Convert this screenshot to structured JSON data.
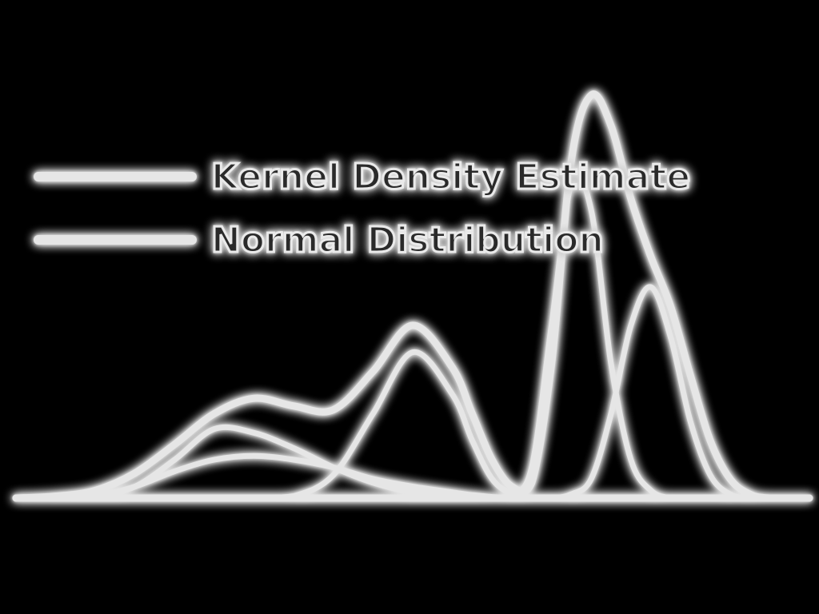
{
  "chart_data": {
    "type": "line",
    "title": "",
    "xlabel": "",
    "ylabel": "",
    "grid": false,
    "axes_visible": false,
    "legend_position": "upper-left",
    "xlim": [
      0,
      10
    ],
    "ylim": [
      0,
      1.0
    ],
    "background_color": "#000000",
    "line_color": "#e6e6e6",
    "legend": [
      {
        "label": "Kernel Density Estimate",
        "series": "kde"
      },
      {
        "label": "Normal Distribution",
        "series": "normal"
      }
    ],
    "x": [
      0.0,
      0.5,
      1.0,
      1.5,
      2.0,
      2.5,
      3.0,
      3.5,
      4.0,
      4.5,
      5.0,
      5.5,
      5.75,
      6.0,
      6.25,
      6.5,
      6.75,
      7.0,
      7.25,
      7.5,
      7.75,
      8.0,
      8.25,
      8.5,
      8.75,
      9.0,
      9.25,
      9.5,
      10.0
    ],
    "series": [
      {
        "id": "kde",
        "values": [
          0.0,
          0.005,
          0.02,
          0.065,
          0.14,
          0.22,
          0.26,
          0.24,
          0.23,
          0.33,
          0.45,
          0.34,
          0.22,
          0.1,
          0.03,
          0.04,
          0.35,
          0.88,
          1.05,
          0.97,
          0.78,
          0.63,
          0.5,
          0.32,
          0.15,
          0.05,
          0.01,
          0.0,
          0.0
        ]
      },
      {
        "id": "normal",
        "components": [
          {
            "values": [
              0.0,
              0.0,
              0.005,
              0.03,
              0.1,
              0.18,
              0.17,
              0.13,
              0.08,
              0.04,
              0.015,
              0.005,
              0.0,
              0.0,
              0.0,
              0.0,
              0.0,
              0.0,
              0.0,
              0.0,
              0.0,
              0.0,
              0.0,
              0.0,
              0.0,
              0.0,
              0.0,
              0.0,
              0.0
            ]
          },
          {
            "values": [
              0.0,
              0.0,
              0.005,
              0.03,
              0.07,
              0.1,
              0.11,
              0.1,
              0.08,
              0.05,
              0.03,
              0.015,
              0.008,
              0.003,
              0.001,
              0.0,
              0.0,
              0.0,
              0.0,
              0.0,
              0.0,
              0.0,
              0.0,
              0.0,
              0.0,
              0.0,
              0.0,
              0.0,
              0.0
            ]
          },
          {
            "values": [
              0.0,
              0.0,
              0.0,
              0.0,
              0.0,
              0.0,
              0.0,
              0.005,
              0.06,
              0.22,
              0.38,
              0.27,
              0.15,
              0.05,
              0.01,
              0.0,
              0.0,
              0.0,
              0.0,
              0.0,
              0.0,
              0.0,
              0.0,
              0.0,
              0.0,
              0.0,
              0.0,
              0.0,
              0.0
            ]
          },
          {
            "values": [
              0.0,
              0.0,
              0.0,
              0.0,
              0.0,
              0.0,
              0.0,
              0.0,
              0.0,
              0.0,
              0.0,
              0.0,
              0.0,
              0.0,
              0.01,
              0.08,
              0.45,
              0.82,
              0.75,
              0.35,
              0.1,
              0.02,
              0.0,
              0.0,
              0.0,
              0.0,
              0.0,
              0.0,
              0.0
            ]
          },
          {
            "values": [
              0.0,
              0.0,
              0.0,
              0.0,
              0.0,
              0.0,
              0.0,
              0.0,
              0.0,
              0.0,
              0.0,
              0.0,
              0.0,
              0.0,
              0.0,
              0.0,
              0.0,
              0.01,
              0.05,
              0.22,
              0.45,
              0.55,
              0.42,
              0.2,
              0.06,
              0.01,
              0.0,
              0.0,
              0.0
            ]
          }
        ]
      }
    ]
  }
}
